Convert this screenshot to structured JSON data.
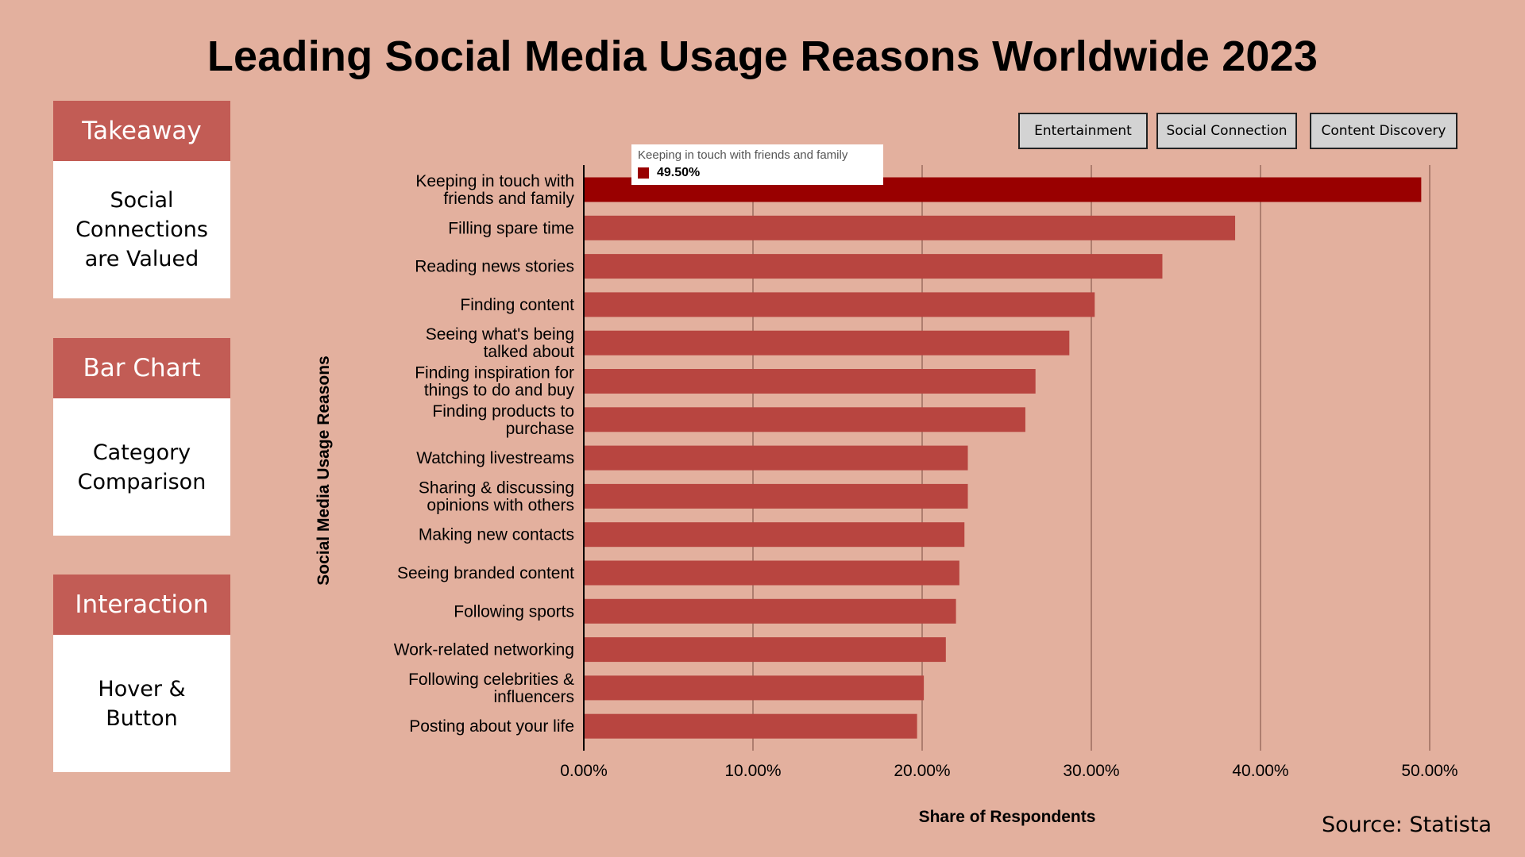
{
  "title": "Leading Social Media Usage Reasons Worldwide 2023",
  "cards": [
    {
      "header": "Takeaway",
      "body": "Social Connections are Valued"
    },
    {
      "header": "Bar Chart",
      "body": "Category Comparison"
    },
    {
      "header": "Interaction",
      "body": "Hover & Button"
    }
  ],
  "buttons": [
    "Entertainment",
    "Social Connection",
    "Content Discovery"
  ],
  "tooltip": {
    "title": "Keeping in touch with friends and family",
    "value": "49.50%"
  },
  "source": "Source: Statista",
  "colors": {
    "background": "#e3b09e",
    "bar": "#b84540",
    "bar_highlight": "#990000",
    "card_header": "#c25c55"
  },
  "chart_data": {
    "type": "bar",
    "orientation": "horizontal",
    "xlabel": "Share of Respondents",
    "ylabel": "Social Media Usage Reasons",
    "xlim": [
      0,
      50
    ],
    "ticks": [
      0,
      10,
      20,
      30,
      40,
      50
    ],
    "tick_labels": [
      "0.00%",
      "10.00%",
      "20.00%",
      "30.00%",
      "40.00%",
      "50.00%"
    ],
    "grid": "vertical",
    "highlighted_category": "Keeping in touch with friends and family",
    "categories": [
      [
        "Keeping in touch with",
        "friends and family"
      ],
      [
        "Filling spare time"
      ],
      [
        "Reading news stories"
      ],
      [
        "Finding content"
      ],
      [
        "Seeing what's being",
        "talked about"
      ],
      [
        "Finding inspiration for",
        "things to do and buy"
      ],
      [
        "Finding products to",
        "purchase"
      ],
      [
        "Watching livestreams"
      ],
      [
        "Sharing & discussing",
        "opinions with others"
      ],
      [
        "Making new contacts"
      ],
      [
        "Seeing branded content"
      ],
      [
        "Following sports"
      ],
      [
        "Work-related networking"
      ],
      [
        "Following celebrities &",
        "influencers"
      ],
      [
        "Posting about your life"
      ]
    ],
    "values": [
      49.5,
      38.5,
      34.2,
      30.2,
      28.7,
      26.7,
      26.1,
      22.7,
      22.7,
      22.5,
      22.2,
      22.0,
      21.4,
      20.1,
      19.7
    ]
  }
}
